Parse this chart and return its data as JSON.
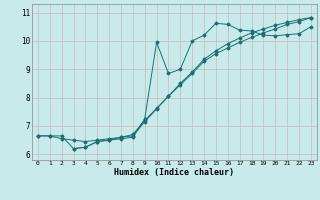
{
  "xlabel": "Humidex (Indice chaleur)",
  "bg_color": "#c8eaea",
  "grid_color": "#d4e8e8",
  "line_color": "#1a7070",
  "xlim": [
    -0.5,
    23.5
  ],
  "ylim": [
    5.8,
    11.3
  ],
  "xticks": [
    0,
    1,
    2,
    3,
    4,
    5,
    6,
    7,
    8,
    9,
    10,
    11,
    12,
    13,
    14,
    15,
    16,
    17,
    18,
    19,
    20,
    21,
    22,
    23
  ],
  "yticks": [
    6,
    7,
    8,
    9,
    10,
    11
  ],
  "line1_x": [
    0,
    1,
    2,
    3,
    4,
    5,
    6,
    7,
    8,
    9,
    10,
    11,
    12,
    13,
    14,
    15,
    16,
    17,
    18,
    19,
    20,
    21,
    22,
    23
  ],
  "line1_y": [
    6.65,
    6.65,
    6.65,
    6.2,
    6.25,
    6.45,
    6.5,
    6.55,
    6.6,
    7.25,
    9.95,
    8.85,
    9.0,
    10.0,
    10.2,
    10.62,
    10.58,
    10.38,
    10.35,
    10.2,
    10.18,
    10.22,
    10.25,
    10.5
  ],
  "line2_x": [
    0,
    1,
    2,
    3,
    4,
    5,
    6,
    7,
    8,
    9,
    10,
    11,
    12,
    13,
    14,
    15,
    16,
    17,
    18,
    19,
    20,
    21,
    22,
    23
  ],
  "line2_y": [
    6.65,
    6.65,
    6.55,
    6.5,
    6.45,
    6.5,
    6.55,
    6.6,
    6.65,
    7.15,
    7.6,
    8.05,
    8.5,
    8.9,
    9.35,
    9.65,
    9.9,
    10.1,
    10.28,
    10.42,
    10.55,
    10.65,
    10.75,
    10.82
  ],
  "line3_x": [
    3,
    4,
    5,
    6,
    7,
    8,
    9,
    10,
    11,
    12,
    13,
    14,
    15,
    16,
    17,
    18,
    19,
    20,
    21,
    22,
    23
  ],
  "line3_y": [
    6.2,
    6.25,
    6.45,
    6.5,
    6.6,
    6.7,
    7.2,
    7.62,
    8.05,
    8.45,
    8.85,
    9.28,
    9.55,
    9.75,
    9.95,
    10.12,
    10.28,
    10.42,
    10.58,
    10.68,
    10.82
  ]
}
